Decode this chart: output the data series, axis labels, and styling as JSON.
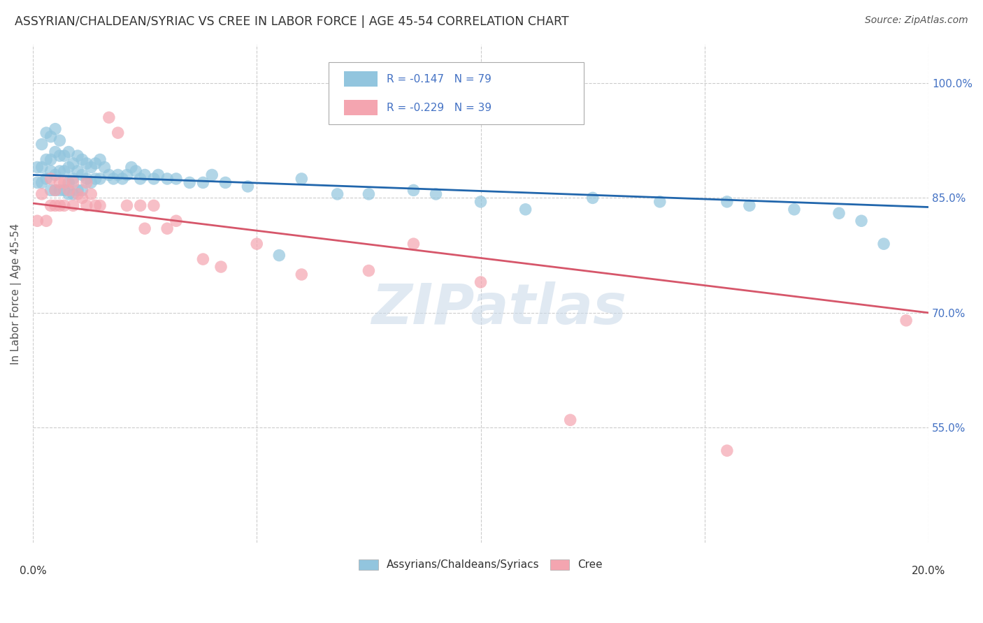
{
  "title": "ASSYRIAN/CHALDEAN/SYRIAC VS CREE IN LABOR FORCE | AGE 45-54 CORRELATION CHART",
  "source": "Source: ZipAtlas.com",
  "ylabel": "In Labor Force | Age 45-54",
  "xmin": 0.0,
  "xmax": 0.2,
  "ymin": 0.4,
  "ymax": 1.05,
  "yticks": [
    0.55,
    0.7,
    0.85,
    1.0
  ],
  "ytick_labels": [
    "55.0%",
    "70.0%",
    "85.0%",
    "100.0%"
  ],
  "xtick_positions": [
    0.0,
    0.05,
    0.1,
    0.15,
    0.2
  ],
  "legend_text_blue": "R = -0.147   N = 79",
  "legend_text_pink": "R = -0.229   N = 39",
  "blue_color": "#92c5de",
  "pink_color": "#f4a5b0",
  "blue_line_color": "#2166ac",
  "pink_line_color": "#d6566a",
  "watermark": "ZIPatlas",
  "legend_label_blue": "Assyrians/Chaldeans/Syriacs",
  "legend_label_pink": "Cree",
  "blue_scatter_x": [
    0.001,
    0.001,
    0.002,
    0.002,
    0.002,
    0.003,
    0.003,
    0.003,
    0.004,
    0.004,
    0.004,
    0.004,
    0.005,
    0.005,
    0.005,
    0.005,
    0.006,
    0.006,
    0.006,
    0.006,
    0.007,
    0.007,
    0.007,
    0.008,
    0.008,
    0.008,
    0.008,
    0.009,
    0.009,
    0.009,
    0.01,
    0.01,
    0.01,
    0.011,
    0.011,
    0.011,
    0.012,
    0.012,
    0.013,
    0.013,
    0.014,
    0.014,
    0.015,
    0.015,
    0.016,
    0.017,
    0.018,
    0.019,
    0.02,
    0.021,
    0.022,
    0.023,
    0.024,
    0.025,
    0.027,
    0.028,
    0.03,
    0.032,
    0.035,
    0.038,
    0.04,
    0.043,
    0.048,
    0.055,
    0.06,
    0.068,
    0.075,
    0.085,
    0.09,
    0.1,
    0.11,
    0.125,
    0.14,
    0.155,
    0.16,
    0.17,
    0.18,
    0.185,
    0.19
  ],
  "blue_scatter_y": [
    0.89,
    0.87,
    0.92,
    0.89,
    0.87,
    0.935,
    0.9,
    0.875,
    0.93,
    0.9,
    0.885,
    0.86,
    0.94,
    0.91,
    0.88,
    0.86,
    0.925,
    0.905,
    0.885,
    0.86,
    0.905,
    0.885,
    0.86,
    0.91,
    0.89,
    0.87,
    0.855,
    0.895,
    0.875,
    0.855,
    0.905,
    0.885,
    0.86,
    0.9,
    0.88,
    0.86,
    0.895,
    0.875,
    0.89,
    0.87,
    0.895,
    0.875,
    0.9,
    0.875,
    0.89,
    0.88,
    0.875,
    0.88,
    0.875,
    0.88,
    0.89,
    0.885,
    0.875,
    0.88,
    0.875,
    0.88,
    0.875,
    0.875,
    0.87,
    0.87,
    0.88,
    0.87,
    0.865,
    0.775,
    0.875,
    0.855,
    0.855,
    0.86,
    0.855,
    0.845,
    0.835,
    0.85,
    0.845,
    0.845,
    0.84,
    0.835,
    0.83,
    0.82,
    0.79
  ],
  "pink_scatter_x": [
    0.001,
    0.002,
    0.003,
    0.004,
    0.004,
    0.005,
    0.005,
    0.006,
    0.006,
    0.007,
    0.007,
    0.008,
    0.009,
    0.009,
    0.01,
    0.011,
    0.012,
    0.012,
    0.013,
    0.014,
    0.015,
    0.017,
    0.019,
    0.021,
    0.024,
    0.025,
    0.027,
    0.03,
    0.032,
    0.038,
    0.042,
    0.05,
    0.06,
    0.075,
    0.085,
    0.1,
    0.12,
    0.155,
    0.195
  ],
  "pink_scatter_y": [
    0.82,
    0.855,
    0.82,
    0.875,
    0.84,
    0.86,
    0.84,
    0.87,
    0.84,
    0.87,
    0.84,
    0.86,
    0.87,
    0.84,
    0.855,
    0.85,
    0.87,
    0.84,
    0.855,
    0.84,
    0.84,
    0.955,
    0.935,
    0.84,
    0.84,
    0.81,
    0.84,
    0.81,
    0.82,
    0.77,
    0.76,
    0.79,
    0.75,
    0.755,
    0.79,
    0.74,
    0.56,
    0.52,
    0.69
  ],
  "blue_trend_x": [
    0.0,
    0.2
  ],
  "blue_trend_y": [
    0.88,
    0.838
  ],
  "pink_trend_x": [
    0.0,
    0.2
  ],
  "pink_trend_y": [
    0.843,
    0.7
  ],
  "background_color": "#ffffff",
  "grid_color": "#cccccc",
  "title_color": "#333333",
  "right_tick_color": "#4472c4"
}
